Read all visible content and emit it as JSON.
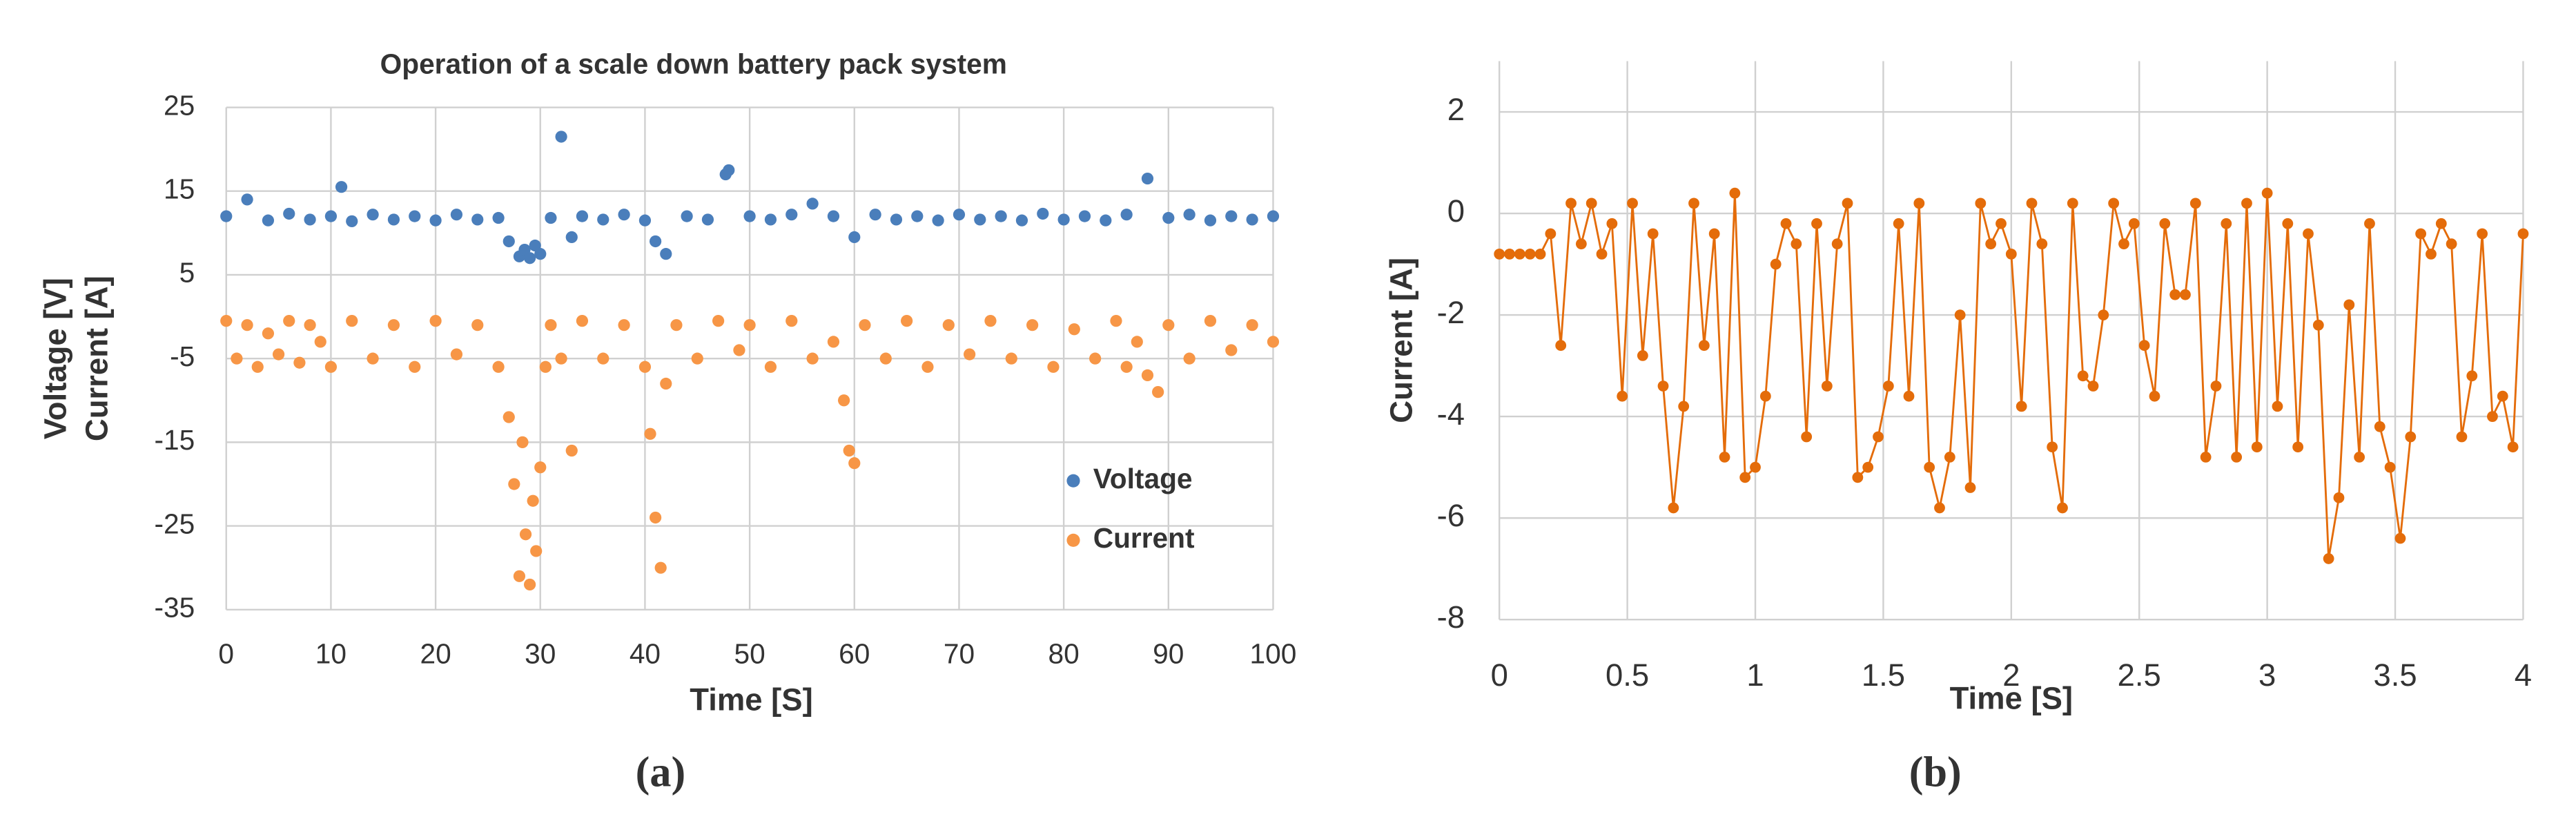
{
  "chart_data": [
    {
      "type": "scatter",
      "title": "Operation of a scale down battery pack system",
      "xlabel": "Time [S]",
      "ylabel": [
        "Voltage [V]",
        "Current [A]"
      ],
      "caption": "(a)",
      "xlim": [
        0,
        100
      ],
      "xticks": [
        0,
        10,
        20,
        30,
        40,
        50,
        60,
        70,
        80,
        90,
        100
      ],
      "ylim": [
        -35,
        25
      ],
      "yticks": [
        -35,
        -25,
        -15,
        -5,
        5,
        15,
        25
      ],
      "grid": true,
      "legend": "right",
      "series": [
        {
          "name": "Voltage",
          "color": "#4a7ebb",
          "x": [
            0,
            2,
            4,
            6,
            8,
            10,
            11,
            12,
            14,
            16,
            18,
            20,
            22,
            24,
            26,
            27,
            28,
            28.5,
            29,
            29.5,
            30,
            31,
            32,
            33,
            34,
            36,
            38,
            40,
            41,
            42,
            44,
            46,
            47.7,
            48,
            50,
            52,
            54,
            56,
            58,
            60,
            62,
            64,
            66,
            68,
            70,
            72,
            74,
            76,
            78,
            80,
            82,
            84,
            86,
            88,
            90,
            92,
            94,
            96,
            98,
            100
          ],
          "values": [
            12,
            14,
            11.5,
            12.3,
            11.6,
            12,
            15.5,
            11.4,
            12.2,
            11.6,
            12,
            11.5,
            12.2,
            11.6,
            11.8,
            9,
            7.2,
            8,
            7,
            8.5,
            7.5,
            11.8,
            21.5,
            9.5,
            12,
            11.6,
            12.2,
            11.5,
            9,
            7.5,
            12,
            11.6,
            17,
            17.5,
            12,
            11.6,
            12.2,
            13.5,
            12,
            9.5,
            12.2,
            11.6,
            12,
            11.5,
            12.2,
            11.6,
            12,
            11.5,
            12.3,
            11.6,
            12,
            11.5,
            12.2,
            16.5,
            11.8,
            12.2,
            11.5,
            12,
            11.6,
            12
          ]
        },
        {
          "name": "Current",
          "color": "#f79646",
          "x": [
            0,
            1,
            2,
            3,
            4,
            5,
            6,
            7,
            8,
            9,
            10,
            12,
            14,
            16,
            18,
            20,
            22,
            24,
            26,
            27,
            27.5,
            28,
            28.3,
            28.6,
            29,
            29.3,
            29.6,
            30,
            30.5,
            31,
            32,
            33,
            34,
            36,
            38,
            40,
            40.5,
            41,
            41.5,
            42,
            43,
            45,
            47,
            49,
            50,
            52,
            54,
            56,
            58,
            59,
            59.5,
            60,
            61,
            63,
            65,
            67,
            69,
            71,
            73,
            75,
            77,
            79,
            81,
            83,
            85,
            86,
            87,
            88,
            89,
            90,
            92,
            94,
            96,
            98,
            100
          ],
          "values": [
            -0.5,
            -5,
            -1,
            -6,
            -2,
            -4.5,
            -0.5,
            -5.5,
            -1,
            -3,
            -6,
            -0.5,
            -5,
            -1,
            -6,
            -0.5,
            -4.5,
            -1,
            -6,
            -12,
            -20,
            -31,
            -15,
            -26,
            -32,
            -22,
            -28,
            -18,
            -6,
            -1,
            -5,
            -16,
            -0.5,
            -5,
            -1,
            -6,
            -14,
            -24,
            -30,
            -8,
            -1,
            -5,
            -0.5,
            -4,
            -1,
            -6,
            -0.5,
            -5,
            -3,
            -10,
            -16,
            -17.5,
            -1,
            -5,
            -0.5,
            -6,
            -1,
            -4.5,
            -0.5,
            -5,
            -1,
            -6,
            -1.5,
            -5,
            -0.5,
            -6,
            -3,
            -7,
            -9,
            -1,
            -5,
            -0.5,
            -4,
            -1,
            -3
          ]
        }
      ]
    },
    {
      "type": "line",
      "xlabel": "Time [S]",
      "ylabel": [
        "Current [A]"
      ],
      "caption": "(b)",
      "xlim": [
        0,
        4
      ],
      "xticks": [
        0,
        0.5,
        1,
        1.5,
        2,
        2.5,
        3,
        3.5,
        4
      ],
      "ylim": [
        -8,
        3
      ],
      "yticks": [
        -8,
        -6,
        -4,
        -2,
        0,
        2
      ],
      "grid": true,
      "series": [
        {
          "color": "#e46c0a",
          "x": [
            0,
            0.04,
            0.08,
            0.12,
            0.16,
            0.2,
            0.24,
            0.28,
            0.32,
            0.36,
            0.4,
            0.44,
            0.48,
            0.52,
            0.56,
            0.6,
            0.64,
            0.68,
            0.72,
            0.76,
            0.8,
            0.84,
            0.88,
            0.92,
            0.96,
            1,
            1.04,
            1.08,
            1.12,
            1.16,
            1.2,
            1.24,
            1.28,
            1.32,
            1.36,
            1.4,
            1.44,
            1.48,
            1.52,
            1.56,
            1.6,
            1.64,
            1.68,
            1.72,
            1.76,
            1.8,
            1.84,
            1.88,
            1.92,
            1.96,
            2,
            2.04,
            2.08,
            2.12,
            2.16,
            2.2,
            2.24,
            2.28,
            2.32,
            2.36,
            2.4,
            2.44,
            2.48,
            2.52,
            2.56,
            2.6,
            2.64,
            2.68,
            2.72,
            2.76,
            2.8,
            2.84,
            2.88,
            2.92,
            2.96,
            3,
            3.04,
            3.08,
            3.12,
            3.16,
            3.2,
            3.24,
            3.28,
            3.32,
            3.36,
            3.4,
            3.44,
            3.48,
            3.52,
            3.56,
            3.6,
            3.64,
            3.68,
            3.72,
            3.76,
            3.8,
            3.84,
            3.88,
            3.92,
            3.96,
            4
          ],
          "values": [
            -0.8,
            -0.8,
            -0.8,
            -0.8,
            -0.8,
            -0.4,
            -2.6,
            0.2,
            -0.6,
            0.2,
            -0.8,
            -0.2,
            -3.6,
            0.2,
            -2.8,
            -0.4,
            -3.4,
            -5.8,
            -3.8,
            0.2,
            -2.6,
            -0.4,
            -4.8,
            0.4,
            -5.2,
            -5,
            -3.6,
            -1,
            -0.2,
            -0.6,
            -4.4,
            -0.2,
            -3.4,
            -0.6,
            0.2,
            -5.2,
            -5,
            -4.4,
            -3.4,
            -0.2,
            -3.6,
            0.2,
            -5,
            -5.8,
            -4.8,
            -2,
            -5.4,
            0.2,
            -0.6,
            -0.2,
            -0.8,
            -3.8,
            0.2,
            -0.6,
            -4.6,
            -5.8,
            0.2,
            -3.2,
            -3.4,
            -2,
            0.2,
            -0.6,
            -0.2,
            -2.6,
            -3.6,
            -0.2,
            -1.6,
            -1.6,
            0.2,
            -4.8,
            -3.4,
            -0.2,
            -4.8,
            0.2,
            -4.6,
            0.4,
            -3.8,
            -0.2,
            -4.6,
            -0.4,
            -2.2,
            -6.8,
            -5.6,
            -1.8,
            -4.8,
            -0.2,
            -4.2,
            -5,
            -6.4,
            -4.4,
            -0.4,
            -0.8,
            -0.2,
            -0.6,
            -4.4,
            -3.2,
            -0.4,
            -4,
            -3.6,
            -4.6,
            -0.4
          ]
        }
      ]
    }
  ]
}
